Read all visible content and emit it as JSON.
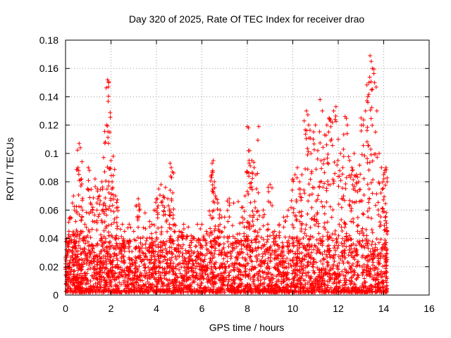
{
  "chart_data": {
    "type": "scatter",
    "title": "Day 320 of 2025, Rate Of TEC Index for receiver drao",
    "xlabel": "GPS time / hours",
    "ylabel": "ROTI / TECUs",
    "xlim": [
      0,
      16
    ],
    "ylim": [
      0,
      0.18
    ],
    "xticks": [
      "0",
      "2",
      "4",
      "6",
      "8",
      "10",
      "12",
      "14",
      "16"
    ],
    "yticks": [
      "0",
      "0.02",
      "0.04",
      "0.06",
      "0.08",
      "0.1",
      "0.12",
      "0.14",
      "0.16",
      "0.18"
    ],
    "grid": true,
    "marker": "+",
    "color": "#ff0000",
    "series": [
      {
        "name": "ROTI",
        "x": [
          0.05,
          0.1,
          0.15,
          0.2,
          0.3,
          0.35,
          0.4,
          0.45,
          0.5,
          0.55,
          0.6,
          0.65,
          0.7,
          0.75,
          0.85,
          1.0,
          1.05,
          1.1,
          1.2,
          1.3,
          1.4,
          1.5,
          1.6,
          1.7,
          1.75,
          1.8,
          1.85,
          1.9,
          1.95,
          2.0,
          2.05,
          2.1,
          2.2,
          2.3,
          2.5,
          2.6,
          2.8,
          3.0,
          3.1,
          3.2,
          3.3,
          3.5,
          3.7,
          3.8,
          3.9,
          4.0,
          4.1,
          4.2,
          4.3,
          4.4,
          4.5,
          4.6,
          4.65,
          4.7,
          4.8,
          5.0,
          5.2,
          5.4,
          5.6,
          5.8,
          6.0,
          6.2,
          6.4,
          6.45,
          6.5,
          6.55,
          6.6,
          6.7,
          6.8,
          7.0,
          7.2,
          7.4,
          7.6,
          7.8,
          7.9,
          8.0,
          8.05,
          8.1,
          8.2,
          8.3,
          8.4,
          8.5,
          8.7,
          8.9,
          9.0,
          9.2,
          9.4,
          9.6,
          9.8,
          10.0,
          10.1,
          10.2,
          10.3,
          10.4,
          10.5,
          10.6,
          10.7,
          10.8,
          10.9,
          11.0,
          11.1,
          11.2,
          11.3,
          11.4,
          11.5,
          11.6,
          11.7,
          11.8,
          11.9,
          12.0,
          12.1,
          12.2,
          12.3,
          12.4,
          12.5,
          12.6,
          12.7,
          12.8,
          12.9,
          13.0,
          13.1,
          13.2,
          13.3,
          13.35,
          13.4,
          13.45,
          13.5,
          13.6,
          13.7,
          13.8,
          13.9,
          14.0,
          14.05,
          14.1,
          14.15
        ],
        "y": [
          0.028,
          0.02,
          0.045,
          0.055,
          0.065,
          0.07,
          0.06,
          0.052,
          0.058,
          0.09,
          0.107,
          0.104,
          0.082,
          0.06,
          0.05,
          0.09,
          0.088,
          0.065,
          0.062,
          0.082,
          0.075,
          0.07,
          0.08,
          0.065,
          0.108,
          0.12,
          0.152,
          0.15,
          0.115,
          0.095,
          0.08,
          0.098,
          0.07,
          0.062,
          0.05,
          0.045,
          0.05,
          0.045,
          0.063,
          0.068,
          0.04,
          0.058,
          0.052,
          0.05,
          0.06,
          0.068,
          0.075,
          0.078,
          0.07,
          0.076,
          0.068,
          0.093,
          0.09,
          0.087,
          0.05,
          0.045,
          0.05,
          0.048,
          0.04,
          0.05,
          0.05,
          0.045,
          0.084,
          0.093,
          0.095,
          0.08,
          0.07,
          0.065,
          0.06,
          0.055,
          0.068,
          0.065,
          0.066,
          0.062,
          0.07,
          0.119,
          0.118,
          0.102,
          0.095,
          0.09,
          0.075,
          0.119,
          0.06,
          0.05,
          0.078,
          0.045,
          0.05,
          0.055,
          0.06,
          0.082,
          0.085,
          0.09,
          0.08,
          0.085,
          0.123,
          0.13,
          0.12,
          0.1,
          0.11,
          0.12,
          0.102,
          0.138,
          0.13,
          0.113,
          0.12,
          0.125,
          0.11,
          0.13,
          0.133,
          0.11,
          0.1,
          0.09,
          0.126,
          0.12,
          0.095,
          0.09,
          0.1,
          0.085,
          0.08,
          0.125,
          0.12,
          0.13,
          0.14,
          0.15,
          0.169,
          0.165,
          0.16,
          0.15,
          0.13,
          0.1,
          0.09,
          0.085,
          0.088,
          0.09,
          0.08
        ]
      }
    ],
    "density": {
      "description": "dense point cloud between 0 and ~0.04 across the full time range 0 to 14.15 h",
      "x_range": [
        0.0,
        14.15
      ],
      "y_range": [
        0.0,
        0.04
      ]
    }
  }
}
